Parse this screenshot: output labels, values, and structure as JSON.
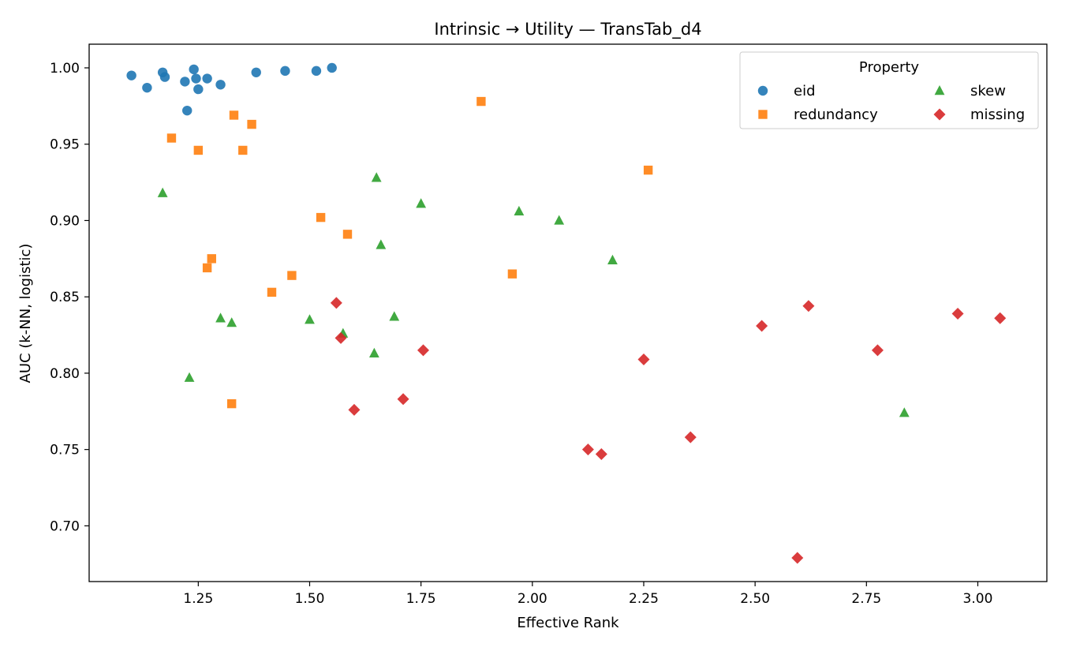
{
  "chart_data": {
    "type": "scatter",
    "title": "Intrinsic → Utility — TransTab_d4",
    "xlabel": "Effective Rank",
    "ylabel": "AUC (k-NN, logistic)",
    "xlim": [
      1.005,
      3.155
    ],
    "ylim": [
      0.6635,
      1.0155
    ],
    "x_ticks": [
      "1.25",
      "1.50",
      "1.75",
      "2.00",
      "2.25",
      "2.50",
      "2.75",
      "3.00"
    ],
    "y_ticks": [
      "0.70",
      "0.75",
      "0.80",
      "0.85",
      "0.90",
      "0.95",
      "1.00"
    ],
    "grid": false,
    "legend": {
      "title": "Property",
      "placement": "top-right",
      "columns": 2
    },
    "series": [
      {
        "name": "eid",
        "marker": "circle",
        "color": "#1f77b4",
        "points": [
          [
            1.1,
            0.995
          ],
          [
            1.135,
            0.987
          ],
          [
            1.17,
            0.997
          ],
          [
            1.175,
            0.994
          ],
          [
            1.22,
            0.991
          ],
          [
            1.225,
            0.972
          ],
          [
            1.24,
            0.999
          ],
          [
            1.245,
            0.993
          ],
          [
            1.25,
            0.986
          ],
          [
            1.27,
            0.993
          ],
          [
            1.3,
            0.989
          ],
          [
            1.38,
            0.997
          ],
          [
            1.445,
            0.998
          ],
          [
            1.515,
            0.998
          ],
          [
            1.55,
            1.0
          ]
        ]
      },
      {
        "name": "redundancy",
        "marker": "square",
        "color": "#ff7f0e",
        "points": [
          [
            1.19,
            0.954
          ],
          [
            1.25,
            0.946
          ],
          [
            1.27,
            0.869
          ],
          [
            1.28,
            0.875
          ],
          [
            1.325,
            0.78
          ],
          [
            1.33,
            0.969
          ],
          [
            1.35,
            0.946
          ],
          [
            1.37,
            0.963
          ],
          [
            1.415,
            0.853
          ],
          [
            1.46,
            0.864
          ],
          [
            1.525,
            0.902
          ],
          [
            1.585,
            0.891
          ],
          [
            1.885,
            0.978
          ],
          [
            1.955,
            0.865
          ],
          [
            2.26,
            0.933
          ]
        ]
      },
      {
        "name": "skew",
        "marker": "triangle",
        "color": "#2ca02c",
        "points": [
          [
            1.17,
            0.918
          ],
          [
            1.23,
            0.797
          ],
          [
            1.3,
            0.836
          ],
          [
            1.325,
            0.833
          ],
          [
            1.5,
            0.835
          ],
          [
            1.575,
            0.826
          ],
          [
            1.645,
            0.813
          ],
          [
            1.65,
            0.928
          ],
          [
            1.66,
            0.884
          ],
          [
            1.69,
            0.837
          ],
          [
            1.75,
            0.911
          ],
          [
            1.97,
            0.906
          ],
          [
            2.06,
            0.9
          ],
          [
            2.18,
            0.874
          ],
          [
            2.835,
            0.774
          ]
        ]
      },
      {
        "name": "missing",
        "marker": "diamond",
        "color": "#d62728",
        "points": [
          [
            1.56,
            0.846
          ],
          [
            1.57,
            0.823
          ],
          [
            1.6,
            0.776
          ],
          [
            1.71,
            0.783
          ],
          [
            1.755,
            0.815
          ],
          [
            2.125,
            0.75
          ],
          [
            2.155,
            0.747
          ],
          [
            2.25,
            0.809
          ],
          [
            2.355,
            0.758
          ],
          [
            2.515,
            0.831
          ],
          [
            2.595,
            0.679
          ],
          [
            2.62,
            0.844
          ],
          [
            2.775,
            0.815
          ],
          [
            2.955,
            0.839
          ],
          [
            3.05,
            0.836
          ]
        ]
      }
    ]
  }
}
